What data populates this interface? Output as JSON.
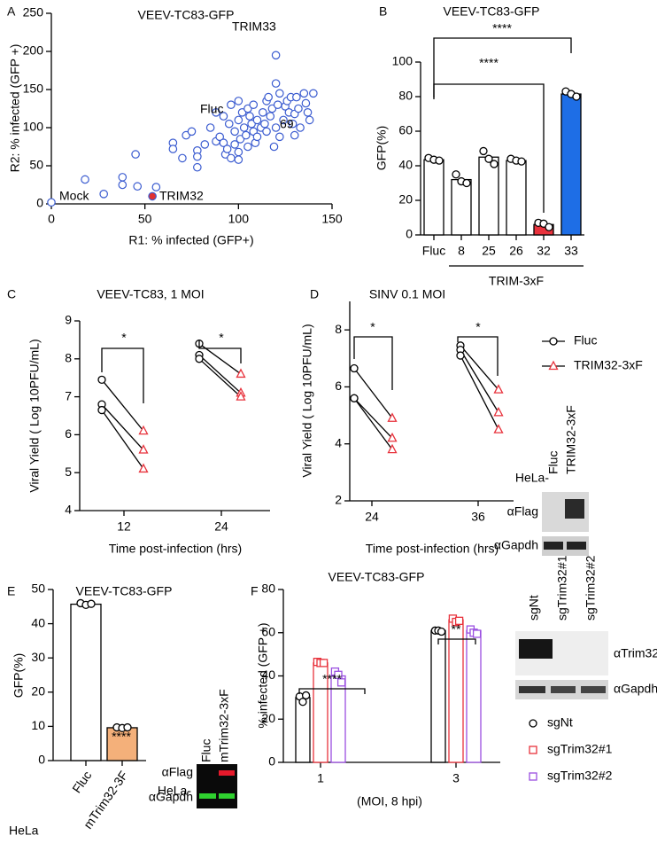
{
  "chart_data": [
    {
      "type": "scatter",
      "label": "A",
      "title": "VEEV-TC83-GFP",
      "xlabel": "R1: % infected (GFP+)",
      "ylabel": "R2: % infected (GFP +)",
      "xlim": [
        0,
        150
      ],
      "ylim": [
        0,
        250
      ],
      "xticks": [
        0,
        50,
        100,
        150
      ],
      "yticks": [
        0,
        50,
        100,
        150,
        200,
        250
      ],
      "series": [
        {
          "color": "#3a5bd0",
          "fill": "#ffffff",
          "x": [
            0,
            18,
            28,
            38,
            38,
            45,
            46,
            56,
            65,
            65,
            70,
            72,
            75,
            78,
            78,
            78,
            82,
            85,
            88,
            88,
            90,
            92,
            92,
            93,
            94,
            95,
            96,
            96,
            98,
            98,
            100,
            100,
            100,
            100,
            101,
            102,
            103,
            104,
            105,
            105,
            106,
            107,
            108,
            108,
            109,
            110,
            110,
            112,
            113,
            114,
            115,
            115,
            116,
            117,
            118,
            119,
            120,
            120,
            120,
            121,
            122,
            122,
            124,
            125,
            126,
            127,
            128,
            129,
            130,
            130,
            131,
            132,
            133,
            135,
            136,
            137,
            138,
            140
          ],
          "values": [
            2,
            32,
            13,
            35,
            25,
            65,
            23,
            22,
            80,
            72,
            60,
            90,
            95,
            48,
            70,
            62,
            78,
            100,
            82,
            120,
            88,
            80,
            115,
            65,
            72,
            105,
            60,
            130,
            95,
            78,
            68,
            58,
            110,
            135,
            85,
            120,
            100,
            90,
            125,
            75,
            115,
            105,
            95,
            130,
            80,
            110,
            88,
            100,
            120,
            105,
            95,
            135,
            140,
            115,
            125,
            75,
            100,
            158,
            195,
            130,
            88,
            145,
            110,
            128,
            135,
            120,
            140,
            105,
            118,
            90,
            140,
            125,
            100,
            145,
            132,
            120,
            110,
            145
          ]
        },
        {
          "color": "#3a5bd0",
          "fill": "#e03131",
          "x": [
            54
          ],
          "values": [
            10
          ]
        }
      ],
      "annotations": [
        {
          "text": "TRIM33",
          "color": "#3a5bd0"
        },
        {
          "text": "Fluc",
          "color": "#3ccf3c"
        },
        {
          "text": "TRIM32",
          "color": "#e03131"
        },
        {
          "text": "Mock",
          "color": "#000000"
        },
        {
          "text": "69",
          "color": "#000000"
        }
      ]
    },
    {
      "type": "bar",
      "label": "B",
      "title": "VEEV-TC83-GFP",
      "ylabel": "GFP(%)",
      "group_label": "TRIM-3xF",
      "categories": [
        "Fluc",
        "8",
        "25",
        "26",
        "32",
        "33"
      ],
      "values": [
        43.5,
        32,
        45,
        43,
        6,
        81.5
      ],
      "replicates": [
        [
          44.5,
          43.5,
          43
        ],
        [
          35,
          31,
          30
        ],
        [
          48.5,
          44,
          41
        ],
        [
          44,
          43,
          42.5
        ],
        [
          7,
          6.5,
          4.5
        ],
        [
          83,
          81.5,
          80
        ]
      ],
      "colors": [
        "#ffffff",
        "#ffffff",
        "#ffffff",
        "#ffffff",
        "#e8323c",
        "#1e6ee6"
      ],
      "ylim": [
        0,
        100
      ],
      "yticks": [
        0,
        20,
        40,
        60,
        80,
        100
      ],
      "annotations": [
        {
          "text": "****"
        },
        {
          "text": "****"
        }
      ]
    },
    {
      "type": "line",
      "label": "C",
      "title": "VEEV-TC83, 1 MOI",
      "xlabel": "Time post-infection (hrs)",
      "ylabel": "Viral Yield ( Log 10PFU/mL)",
      "categories": [
        "12",
        "24"
      ],
      "ylim": [
        4,
        9
      ],
      "yticks": [
        4,
        5,
        6,
        7,
        8,
        9
      ],
      "series": [
        {
          "color": "#000000",
          "marker": "circle",
          "values": [
            [
              7.45,
              6.8,
              6.65
            ],
            [
              8.4,
              8.1,
              8.0
            ]
          ]
        },
        {
          "color": "#e8323c",
          "marker": "triangle",
          "values": [
            [
              6.1,
              5.6,
              5.1
            ],
            [
              7.6,
              7.1,
              7.0
            ]
          ]
        }
      ],
      "annotations": [
        {
          "text": "*"
        },
        {
          "text": "*"
        }
      ]
    },
    {
      "type": "line",
      "label": "D",
      "title": "SINV 0.1 MOI",
      "xlabel": "Time post-infection (hrs)",
      "ylabel": "Viral Yield ( Log 10PFU/mL)",
      "categories": [
        "24",
        "36"
      ],
      "ylim": [
        2,
        9
      ],
      "yticks": [
        2,
        4,
        6,
        8
      ],
      "series": [
        {
          "name": "Fluc",
          "color": "#000000",
          "marker": "circle",
          "values": [
            [
              6.65,
              5.6,
              5.6
            ],
            [
              7.45,
              7.3,
              7.1
            ]
          ]
        },
        {
          "name": "TRIM32-3xF",
          "color": "#e8323c",
          "marker": "triangle",
          "values": [
            [
              4.9,
              4.2,
              3.8
            ],
            [
              5.9,
              5.1,
              4.5
            ]
          ]
        }
      ],
      "annotations": [
        {
          "text": "*"
        },
        {
          "text": "*"
        }
      ],
      "blot": {
        "cell_label": "HeLa-",
        "lanes": [
          "Fluc",
          "TRIM32-3xF"
        ],
        "antibodies": [
          "αFlag",
          "αGapdh"
        ]
      }
    },
    {
      "type": "bar",
      "label": "E",
      "title": "VEEV-TC83-GFP",
      "ylabel": "GFP(%)",
      "row_label": "HeLa",
      "categories": [
        "Fluc",
        "mTrim32-3F"
      ],
      "values": [
        45.7,
        9.6
      ],
      "replicates": [
        [
          46,
          45.5,
          45.8
        ],
        [
          9.7,
          9.5,
          9.7
        ]
      ],
      "colors": [
        "#ffffff",
        "#f4b07a"
      ],
      "ylim": [
        0,
        50
      ],
      "yticks": [
        0,
        10,
        20,
        30,
        40,
        50
      ],
      "annotations": [
        {
          "text": "****"
        }
      ],
      "blot": {
        "cell_label": "HeLa-",
        "lanes": [
          "Fluc",
          "mTrim32-3xF"
        ],
        "antibodies": [
          "αFlag",
          "αGapdh"
        ]
      }
    },
    {
      "type": "bar",
      "label": "F",
      "title": "VEEV-TC83-GFP",
      "xlabel": "(MOI, 8 hpi)",
      "ylabel": "% infected (GFP +)",
      "categories": [
        "1",
        "3"
      ],
      "ylim": [
        0,
        80
      ],
      "yticks": [
        0,
        20,
        40,
        60,
        80
      ],
      "series": [
        {
          "name": "sgNt",
          "color": "#000000",
          "marker": "circle",
          "values": [
            30,
            61
          ],
          "replicates": [
            [
              30.5,
              28,
              31
            ],
            [
              61,
              61,
              60.5
            ]
          ]
        },
        {
          "name": "sgTrim32#1",
          "color": "#e8323c",
          "marker": "square",
          "values": [
            46,
            66
          ],
          "replicates": [
            [
              46.5,
              46,
              46
            ],
            [
              66.5,
              65,
              65.5
            ]
          ]
        },
        {
          "name": "sgTrim32#2",
          "color": "#9a4fe0",
          "marker": "square",
          "values": [
            40,
            61
          ],
          "replicates": [
            [
              42,
              40.5,
              37
            ],
            [
              61.5,
              60,
              59.5
            ]
          ]
        }
      ],
      "annotations": [
        {
          "text": "****"
        },
        {
          "text": "**"
        }
      ],
      "blot": {
        "lanes": [
          "sgNt",
          "sgTrim32#1",
          "sgTrim32#2"
        ],
        "antibodies": [
          "αTrim32",
          "αGapdh"
        ]
      }
    }
  ]
}
